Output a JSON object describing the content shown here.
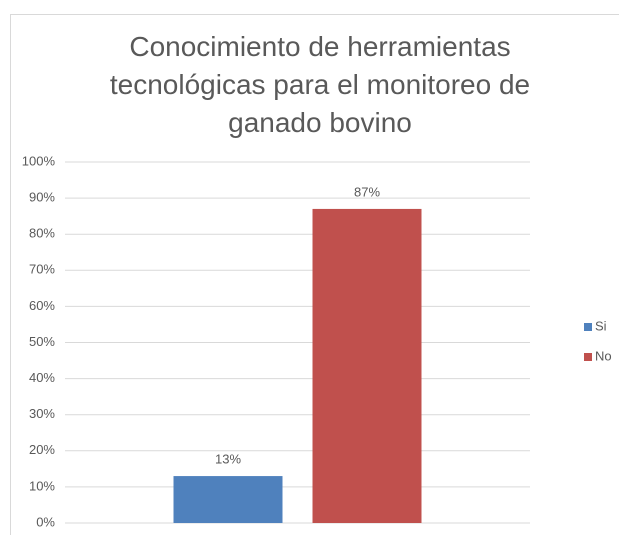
{
  "chart_data": {
    "type": "bar",
    "title": "Conocimiento de herramientas tecnológicas para el monitoreo de ganado bovino",
    "categories": [
      null
    ],
    "series": [
      {
        "name": "Si",
        "color": "#4f81bd",
        "values": [
          13
        ],
        "value_labels": [
          "13%"
        ]
      },
      {
        "name": "No",
        "color": "#c0504d",
        "values": [
          87
        ],
        "value_labels": [
          "87%"
        ]
      }
    ],
    "ylim": [
      0,
      100
    ],
    "yticks": [
      {
        "value": 0,
        "label": "0%"
      },
      {
        "value": 10,
        "label": "10%"
      },
      {
        "value": 20,
        "label": "20%"
      },
      {
        "value": 30,
        "label": "30%"
      },
      {
        "value": 40,
        "label": "40%"
      },
      {
        "value": 50,
        "label": "50%"
      },
      {
        "value": 60,
        "label": "60%"
      },
      {
        "value": 70,
        "label": "70%"
      },
      {
        "value": 80,
        "label": "80%"
      },
      {
        "value": 90,
        "label": "90%"
      },
      {
        "value": 100,
        "label": "100%"
      }
    ],
    "grid": true,
    "legend": "right"
  }
}
